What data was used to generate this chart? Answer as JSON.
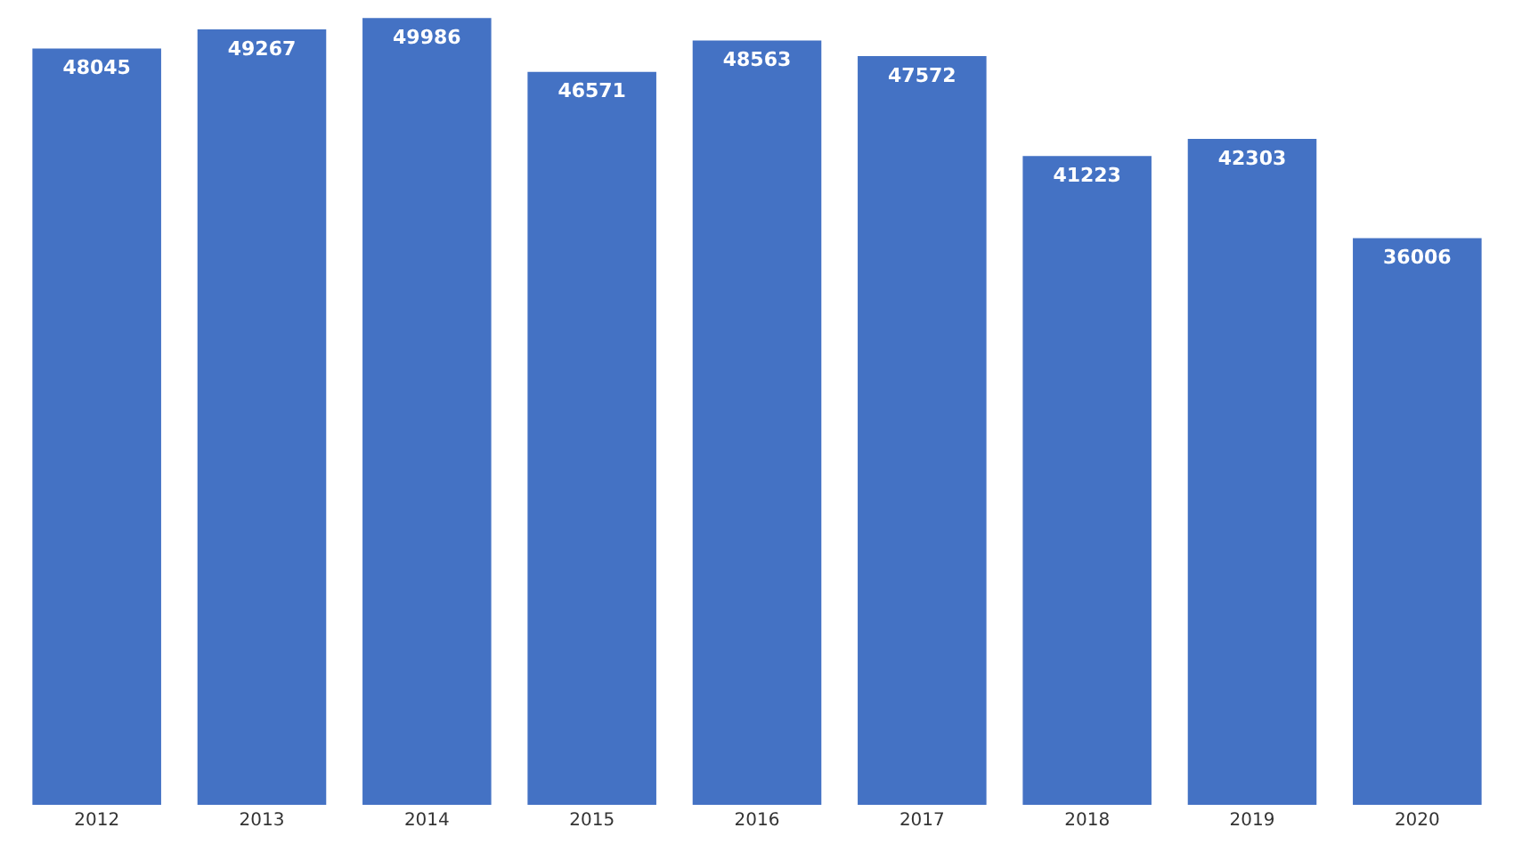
{
  "chart_data": {
    "type": "bar",
    "categories": [
      "2012",
      "2013",
      "2014",
      "2015",
      "2016",
      "2017",
      "2018",
      "2019",
      "2020"
    ],
    "values": [
      48045,
      49267,
      49986,
      46571,
      48563,
      47572,
      41223,
      42303,
      36006
    ],
    "color": "#4472c4",
    "data_labels": true,
    "grid": false,
    "legend": false,
    "tick_labels": "x"
  }
}
